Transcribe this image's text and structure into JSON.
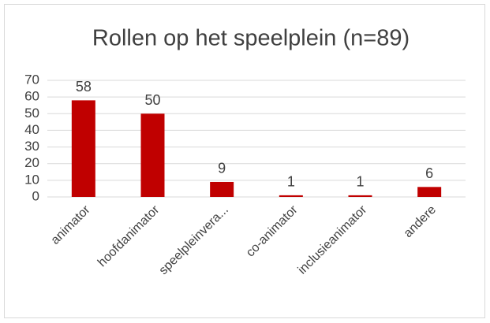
{
  "chart_data": {
    "type": "bar",
    "title": "Rollen op het speelplein (n=89)",
    "categories": [
      "animator",
      "hoofdanimator",
      "speelpleinvera...",
      "co-animator",
      "inclusieanimator",
      "andere"
    ],
    "values": [
      58,
      50,
      9,
      1,
      1,
      6
    ],
    "color": "#c00000",
    "ylim": [
      0,
      70
    ],
    "yticks": [
      0,
      10,
      20,
      30,
      40,
      50,
      60,
      70
    ],
    "grid": true
  }
}
